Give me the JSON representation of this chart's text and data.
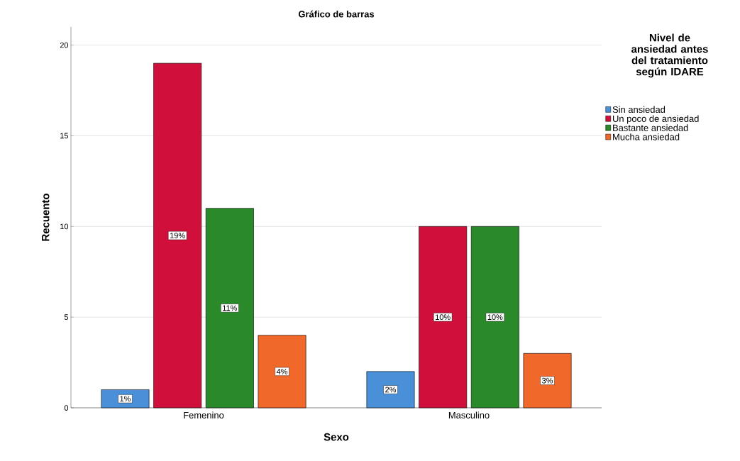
{
  "chart_data": {
    "type": "bar",
    "title": "Gráfico de barras",
    "xlabel": "Sexo",
    "ylabel": "Recuento",
    "legend_title": "Nivel de ansiedad antes del tratamiento según IDARE",
    "categories": [
      "Femenino",
      "Masculino"
    ],
    "series": [
      {
        "name": "Sin ansiedad",
        "color": "#4a90d9",
        "values": [
          1,
          2
        ],
        "value_labels": [
          "1%",
          "2%"
        ]
      },
      {
        "name": "Un poco de ansiedad",
        "color": "#d0103a",
        "values": [
          19,
          10
        ],
        "value_labels": [
          "19%",
          "10%"
        ]
      },
      {
        "name": "Bastante ansiedad",
        "color": "#2a8a2a",
        "values": [
          11,
          10
        ],
        "value_labels": [
          "11%",
          "10%"
        ]
      },
      {
        "name": "Mucha ansiedad",
        "color": "#f0692a",
        "values": [
          4,
          3
        ],
        "value_labels": [
          "4%",
          "3%"
        ]
      }
    ],
    "ylim": [
      0,
      21
    ],
    "yticks": [
      0,
      5,
      10,
      15,
      20
    ],
    "grid": "y",
    "legend": "right"
  }
}
